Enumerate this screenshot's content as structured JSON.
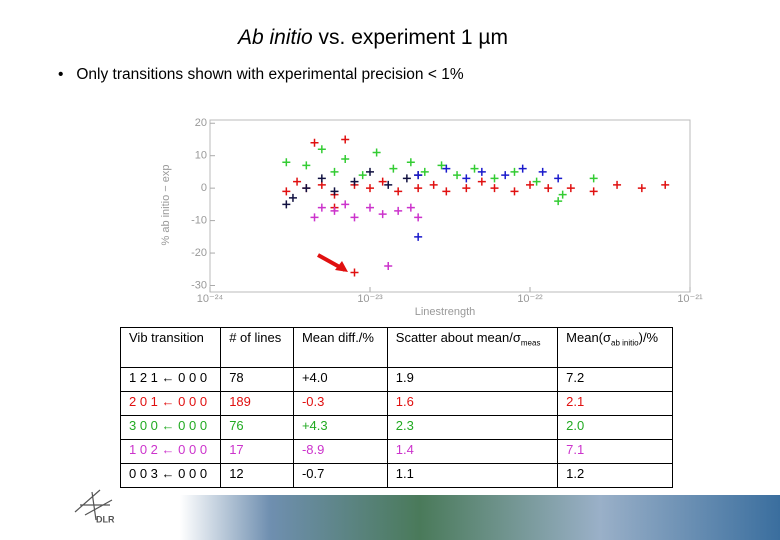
{
  "header": {
    "title_italic": "Ab initio",
    "title_rest": " vs. experiment 1 µm",
    "bullet": "Only transitions shown with experimental precision < 1%"
  },
  "chart_data": {
    "type": "scatter",
    "ylabel": "% ab initio − exp",
    "xlabel": "Linestrength",
    "log_x": true,
    "xlim": [
      1e-24,
      1e-21
    ],
    "xticks": [
      {
        "value": 1e-24,
        "label": "10⁻²⁴"
      },
      {
        "value": 1e-23,
        "label": "10⁻²³"
      },
      {
        "value": 1e-22,
        "label": "10⁻²²"
      },
      {
        "value": 1e-21,
        "label": "10⁻²¹"
      }
    ],
    "ylim": [
      -32,
      21
    ],
    "yticks": [
      20,
      10,
      0,
      -10,
      -20,
      -30
    ],
    "series": [
      {
        "color": "#e01010",
        "x": [
          3e-24,
          3.5e-24,
          4e-24,
          5e-24,
          6e-24,
          7e-24,
          8e-24,
          1e-23,
          1.2e-23,
          1.5e-23,
          2e-23,
          2.5e-23,
          3e-23,
          4e-23,
          5e-23,
          6e-23,
          8e-23,
          1e-22,
          1.3e-22,
          1.8e-22,
          2.5e-22,
          3.5e-22,
          5e-22,
          7e-22,
          8e-24,
          4.5e-24,
          6e-24
        ],
        "values": [
          -1,
          2,
          0,
          1,
          -2,
          15,
          1,
          0,
          2,
          -1,
          0,
          1,
          -1,
          0,
          2,
          0,
          -1,
          1,
          0,
          0,
          -1,
          1,
          0,
          1,
          -26,
          14,
          -6
        ]
      },
      {
        "color": "#33cc33",
        "x": [
          3e-24,
          4e-24,
          5e-24,
          6e-24,
          7e-24,
          9e-24,
          1.1e-23,
          1.4e-23,
          1.8e-23,
          2.2e-23,
          2.8e-23,
          3.5e-23,
          4.5e-23,
          6e-23,
          8e-23,
          1.1e-22,
          1.6e-22,
          2.5e-22,
          1.5e-22
        ],
        "values": [
          8,
          7,
          12,
          5,
          9,
          4,
          11,
          6,
          8,
          5,
          7,
          4,
          6,
          3,
          5,
          2,
          -2,
          3,
          -4
        ]
      },
      {
        "color": "#101040",
        "x": [
          3e-24,
          3.3e-24,
          4e-24,
          5e-24,
          6e-24,
          8e-24,
          1e-23,
          1.3e-23,
          1.7e-23,
          2e-23
        ],
        "values": [
          -5,
          -3,
          0,
          3,
          -1,
          2,
          5,
          1,
          3,
          4
        ]
      },
      {
        "color": "#1a1acc",
        "x": [
          2e-23,
          3e-23,
          4e-23,
          5e-23,
          7e-23,
          9e-23,
          1.2e-22,
          1.5e-22,
          2e-23
        ],
        "values": [
          4,
          6,
          3,
          5,
          4,
          6,
          5,
          3,
          -15
        ]
      },
      {
        "color": "#cc33cc",
        "x": [
          4.5e-24,
          5e-24,
          6e-24,
          7e-24,
          8e-24,
          1e-23,
          1.2e-23,
          1.5e-23,
          1.8e-23,
          2e-23,
          1.3e-23
        ],
        "values": [
          -9,
          -6,
          -7,
          -5,
          -9,
          -6,
          -8,
          -7,
          -6,
          -9,
          -24
        ]
      }
    ]
  },
  "table": {
    "header": [
      "Vib transition",
      "# of lines",
      "Mean diff./%",
      {
        "main": "Scatter about mean/σ",
        "sub": "meas"
      },
      {
        "main": "Mean(σ",
        "sub": "ab initio",
        "tail": ")/%"
      }
    ],
    "rows": [
      {
        "color": "#000000",
        "cells": [
          "1 2 1 ← 0 0 0",
          "78",
          "+4.0",
          "1.9",
          "7.2"
        ]
      },
      {
        "color": "#e01010",
        "cells": [
          "2 0 1 ← 0 0 0",
          "189",
          "-0.3",
          "1.6",
          "2.1"
        ]
      },
      {
        "color": "#22aa22",
        "cells": [
          "3 0 0 ← 0 0 0",
          "76",
          "+4.3",
          "2.3",
          "2.0"
        ]
      },
      {
        "color": "#cc33cc",
        "cells": [
          "1 0 2 ← 0 0 0",
          "17",
          "-8.9",
          "1.4",
          "7.1"
        ]
      },
      {
        "color": "#000000",
        "cells": [
          "0 0 3 ← 0 0 0",
          "12",
          "-0.7",
          "1.1",
          "1.2"
        ]
      }
    ]
  },
  "logo": "DLR"
}
